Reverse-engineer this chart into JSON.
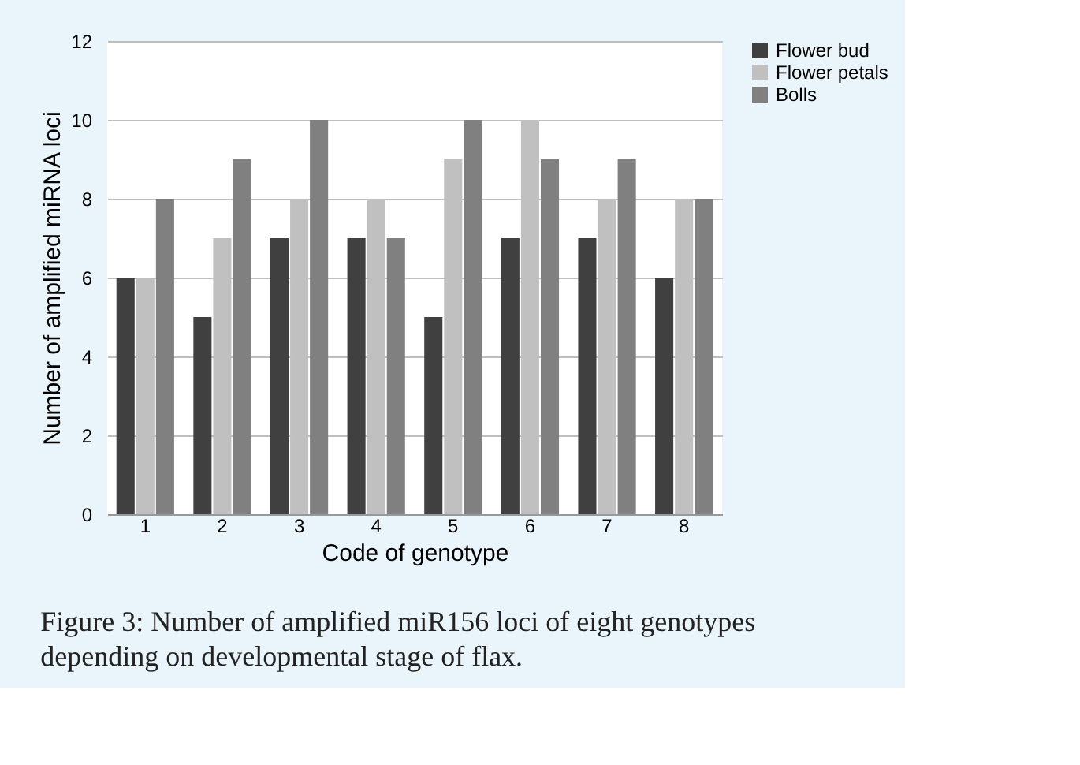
{
  "chart_data": {
    "type": "bar",
    "xlabel": "Code of genotype",
    "ylabel": "Number of amplified miRNA loci",
    "categories": [
      "1",
      "2",
      "3",
      "4",
      "5",
      "6",
      "7",
      "8"
    ],
    "series": [
      {
        "name": "Flower bud",
        "color": "#404040",
        "values": [
          6,
          5,
          7,
          7,
          5,
          7,
          7,
          6
        ]
      },
      {
        "name": "Flower petals",
        "color": "#c0c0c0",
        "values": [
          6,
          7,
          8,
          8,
          9,
          10,
          8,
          8
        ]
      },
      {
        "name": "Bolls",
        "color": "#808080",
        "values": [
          8,
          9,
          10,
          7,
          10,
          9,
          9,
          8
        ]
      }
    ],
    "ylim": [
      0,
      12
    ],
    "yticks": [
      0,
      2,
      4,
      6,
      8,
      10,
      12
    ],
    "grid": "y",
    "legend": "right",
    "annotations": [
      "Figure 3: Number of amplified miR156 loci of eight genotypes depending on developmental stage of flax."
    ]
  }
}
